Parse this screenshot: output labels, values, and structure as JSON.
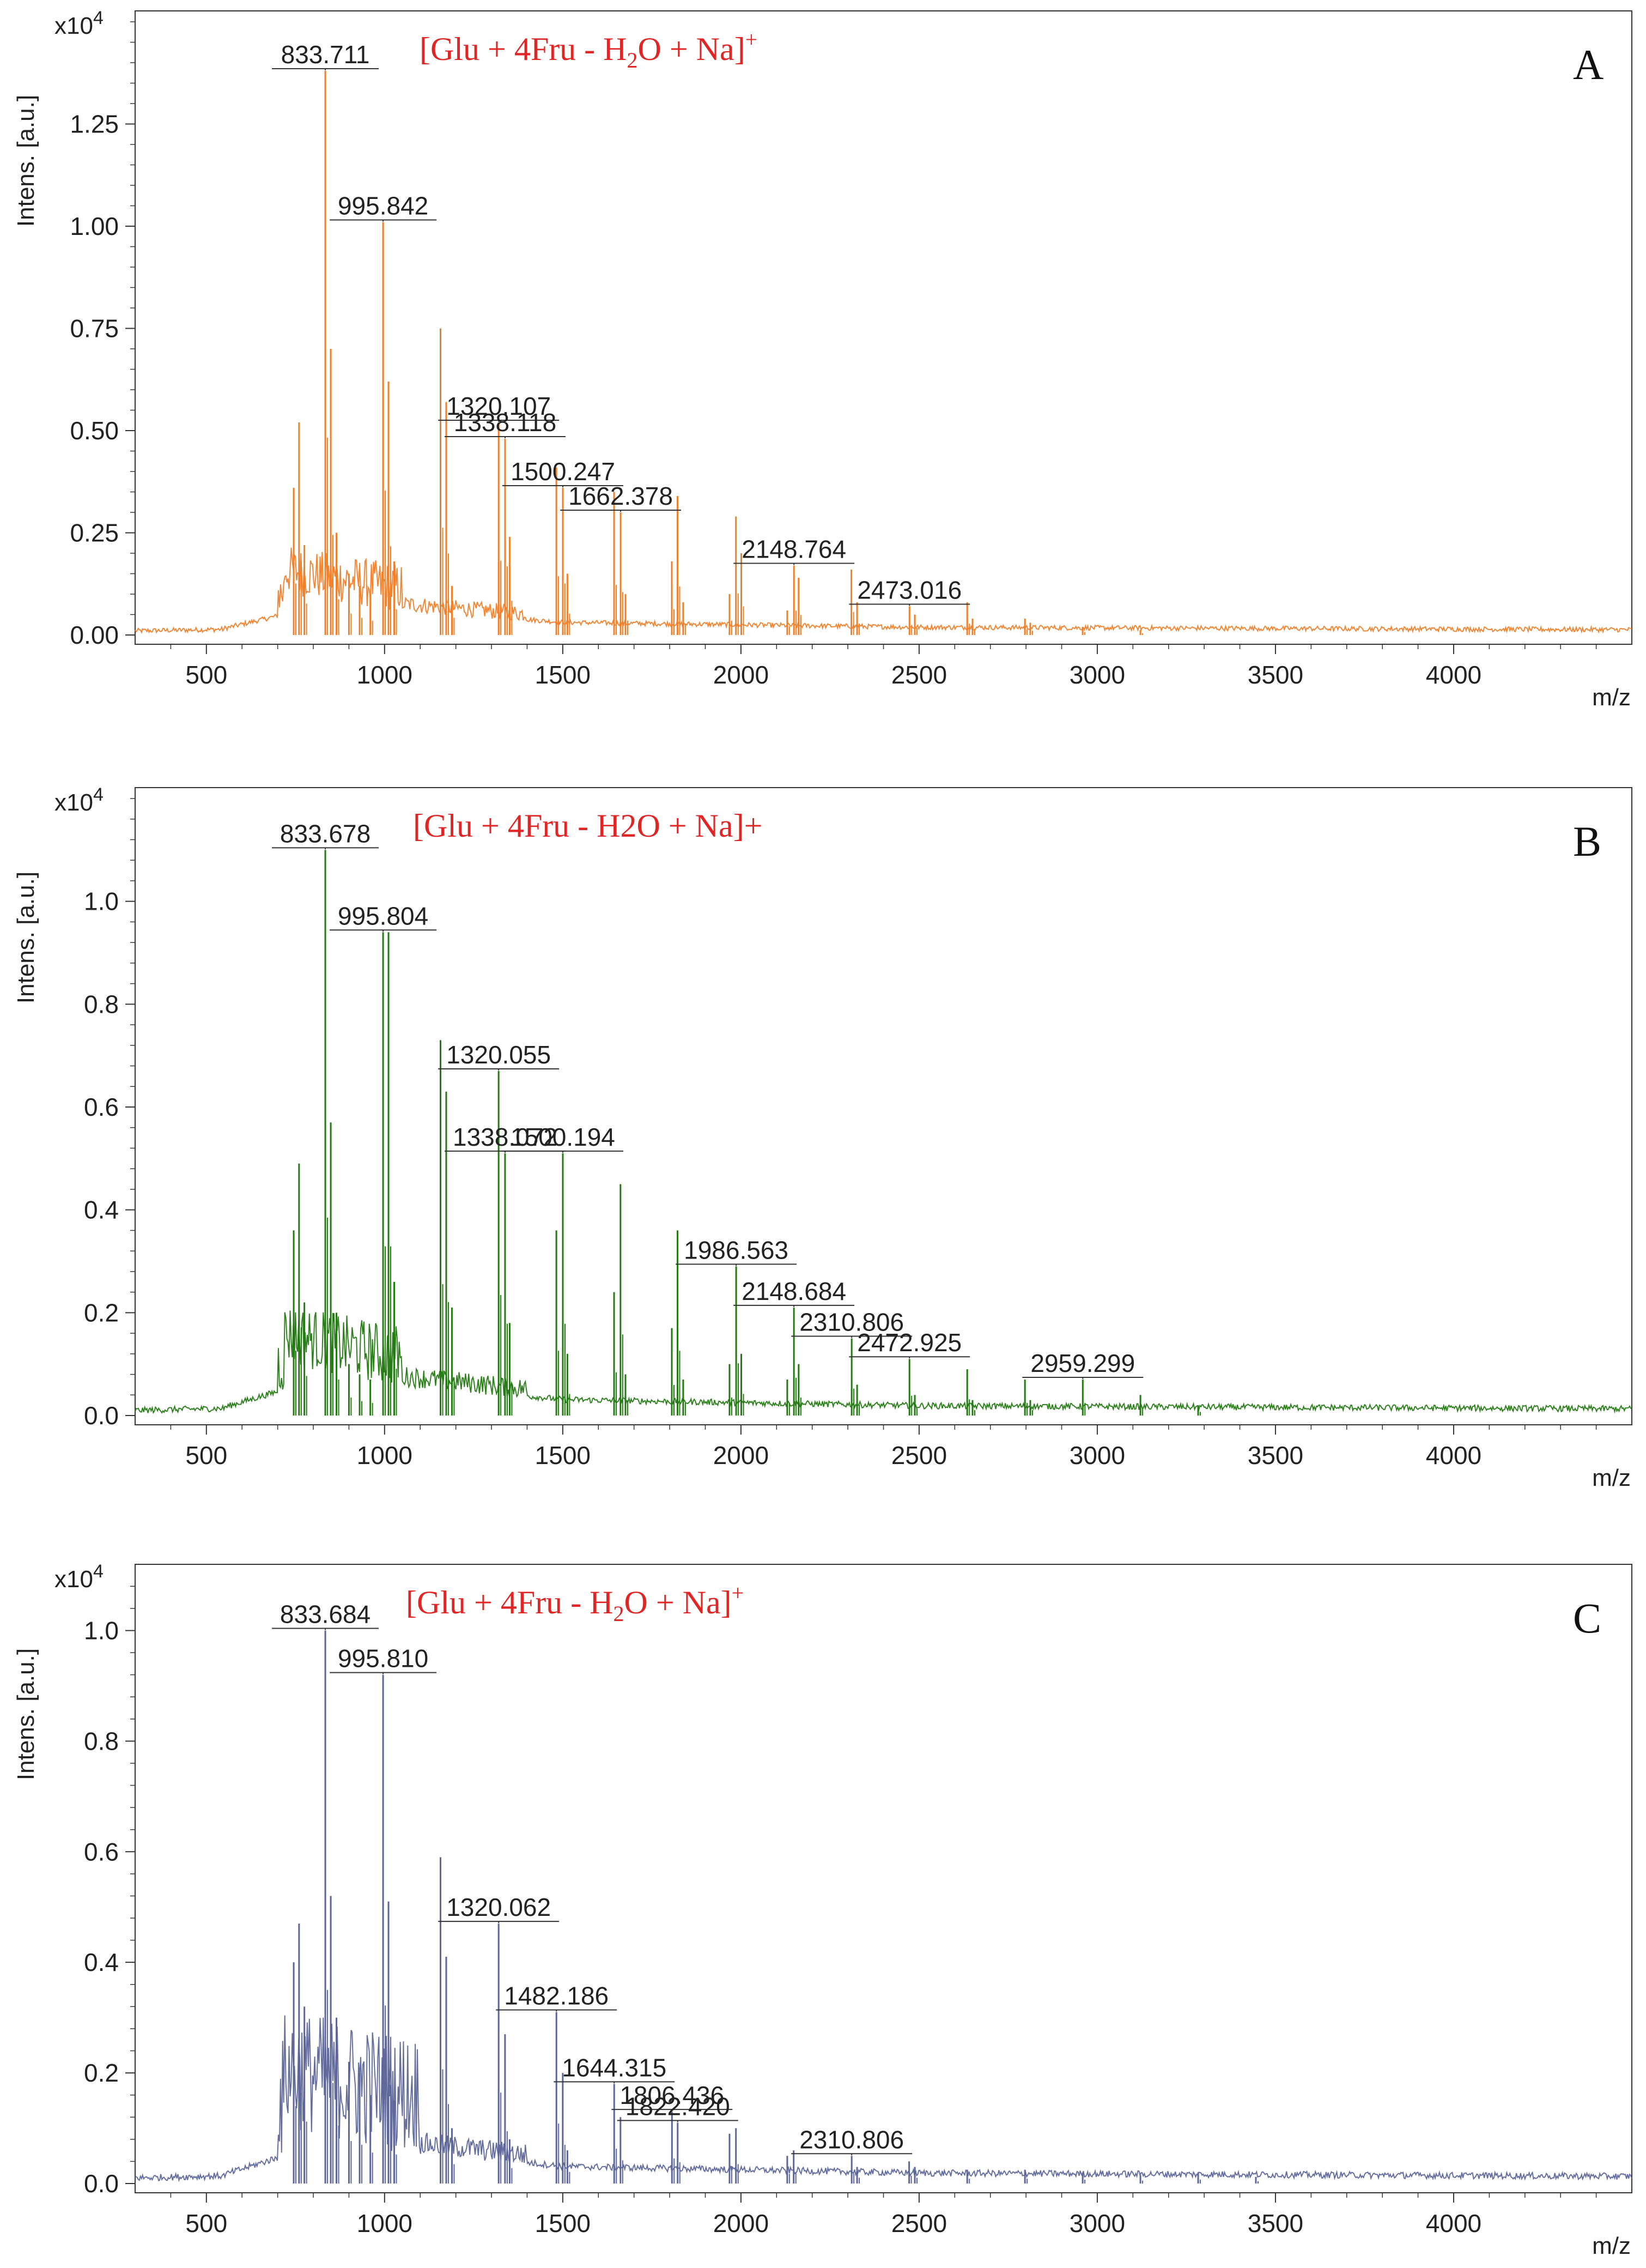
{
  "shared": {
    "xlabel": "m/z",
    "ylabel": "Intens. [a.u.]",
    "multiplier_base": "x10",
    "multiplier_exp": "4",
    "xlim": [
      300,
      4500
    ],
    "x_ticks": [
      500,
      1000,
      1500,
      2000,
      2500,
      3000,
      3500,
      4000
    ]
  },
  "chart_data": [
    {
      "type": "line",
      "panel_label": "A",
      "color": "#F07F2A",
      "annotation": {
        "main": "[Glu + 4Fru - H",
        "sub": "2",
        "main2": "O + Na]",
        "sup": "+",
        "plain": ""
      },
      "ylim": [
        0,
        1.5
      ],
      "y_ticks": [
        "0.00",
        "0.25",
        "0.50",
        "0.75",
        "1.00",
        "1.25"
      ],
      "y_tick_values": [
        0,
        0.25,
        0.5,
        0.75,
        1.0,
        1.25
      ],
      "peaks": [
        {
          "mz": 745,
          "y": 0.36
        },
        {
          "mz": 760,
          "y": 0.52
        },
        {
          "mz": 775,
          "y": 0.22
        },
        {
          "mz": 833.711,
          "y": 1.38
        },
        {
          "mz": 849,
          "y": 0.7
        },
        {
          "mz": 865,
          "y": 0.25
        },
        {
          "mz": 900,
          "y": 0.15
        },
        {
          "mz": 930,
          "y": 0.12
        },
        {
          "mz": 960,
          "y": 0.1
        },
        {
          "mz": 995.842,
          "y": 1.01
        },
        {
          "mz": 1011,
          "y": 0.62
        },
        {
          "mz": 1027,
          "y": 0.18
        },
        {
          "mz": 1157,
          "y": 0.75
        },
        {
          "mz": 1173,
          "y": 0.57
        },
        {
          "mz": 1189,
          "y": 0.12
        },
        {
          "mz": 1320.107,
          "y": 0.52
        },
        {
          "mz": 1338.118,
          "y": 0.48
        },
        {
          "mz": 1351,
          "y": 0.24
        },
        {
          "mz": 1482,
          "y": 0.41
        },
        {
          "mz": 1500.247,
          "y": 0.36
        },
        {
          "mz": 1513,
          "y": 0.15
        },
        {
          "mz": 1644,
          "y": 0.35
        },
        {
          "mz": 1662.378,
          "y": 0.3
        },
        {
          "mz": 1676,
          "y": 0.1
        },
        {
          "mz": 1806,
          "y": 0.18
        },
        {
          "mz": 1822,
          "y": 0.34
        },
        {
          "mz": 1838,
          "y": 0.08
        },
        {
          "mz": 1968,
          "y": 0.1
        },
        {
          "mz": 1986,
          "y": 0.29
        },
        {
          "mz": 2001,
          "y": 0.2
        },
        {
          "mz": 2130,
          "y": 0.06
        },
        {
          "mz": 2148.764,
          "y": 0.17
        },
        {
          "mz": 2162,
          "y": 0.14
        },
        {
          "mz": 2310,
          "y": 0.16
        },
        {
          "mz": 2326,
          "y": 0.08
        },
        {
          "mz": 2473.016,
          "y": 0.07
        },
        {
          "mz": 2488,
          "y": 0.05
        },
        {
          "mz": 2635,
          "y": 0.08
        },
        {
          "mz": 2650,
          "y": 0.04
        },
        {
          "mz": 2797,
          "y": 0.04
        },
        {
          "mz": 2812,
          "y": 0.03
        },
        {
          "mz": 2959,
          "y": 0.02
        },
        {
          "mz": 3121,
          "y": 0.012
        }
      ],
      "labels": [
        {
          "text": "833.711",
          "mz": 833.711,
          "y": 1.38
        },
        {
          "text": "995.842",
          "mz": 995.842,
          "y": 1.01
        },
        {
          "text": "1320.107",
          "mz": 1320.107,
          "y": 0.52
        },
        {
          "text": "1338.118",
          "mz": 1338.118,
          "y": 0.48
        },
        {
          "text": "1500.247",
          "mz": 1500.247,
          "y": 0.36
        },
        {
          "text": "1662.378",
          "mz": 1662.378,
          "y": 0.3
        },
        {
          "text": "2148.764",
          "mz": 2148.764,
          "y": 0.17
        },
        {
          "text": "2473.016",
          "mz": 2473.016,
          "y": 0.07
        }
      ]
    },
    {
      "type": "line",
      "panel_label": "B",
      "color": "#237A12",
      "annotation": {
        "main": "",
        "sub": "",
        "main2": "",
        "sup": "",
        "plain": "[Glu + 4Fru - H2O + Na]+"
      },
      "ylim": [
        0,
        1.2
      ],
      "y_ticks": [
        "0.0",
        "0.2",
        "0.4",
        "0.6",
        "0.8",
        "1.0"
      ],
      "y_tick_values": [
        0,
        0.2,
        0.4,
        0.6,
        0.8,
        1.0
      ],
      "peaks": [
        {
          "mz": 745,
          "y": 0.36
        },
        {
          "mz": 760,
          "y": 0.49
        },
        {
          "mz": 775,
          "y": 0.22
        },
        {
          "mz": 833.678,
          "y": 1.1
        },
        {
          "mz": 849,
          "y": 0.57
        },
        {
          "mz": 865,
          "y": 0.2
        },
        {
          "mz": 900,
          "y": 0.1
        },
        {
          "mz": 930,
          "y": 0.08
        },
        {
          "mz": 960,
          "y": 0.07
        },
        {
          "mz": 995.804,
          "y": 0.94
        },
        {
          "mz": 1011,
          "y": 0.94
        },
        {
          "mz": 1027,
          "y": 0.26
        },
        {
          "mz": 1157,
          "y": 0.73
        },
        {
          "mz": 1173,
          "y": 0.63
        },
        {
          "mz": 1189,
          "y": 0.21
        },
        {
          "mz": 1320.055,
          "y": 0.67
        },
        {
          "mz": 1338.072,
          "y": 0.51
        },
        {
          "mz": 1351,
          "y": 0.18
        },
        {
          "mz": 1482,
          "y": 0.36
        },
        {
          "mz": 1500.194,
          "y": 0.51
        },
        {
          "mz": 1513,
          "y": 0.12
        },
        {
          "mz": 1644,
          "y": 0.24
        },
        {
          "mz": 1662,
          "y": 0.45
        },
        {
          "mz": 1676,
          "y": 0.08
        },
        {
          "mz": 1806,
          "y": 0.17
        },
        {
          "mz": 1822,
          "y": 0.36
        },
        {
          "mz": 1838,
          "y": 0.07
        },
        {
          "mz": 1968,
          "y": 0.1
        },
        {
          "mz": 1986.563,
          "y": 0.29
        },
        {
          "mz": 2001,
          "y": 0.12
        },
        {
          "mz": 2130,
          "y": 0.07
        },
        {
          "mz": 2148.684,
          "y": 0.21
        },
        {
          "mz": 2162,
          "y": 0.1
        },
        {
          "mz": 2310.806,
          "y": 0.15
        },
        {
          "mz": 2326,
          "y": 0.06
        },
        {
          "mz": 2472.925,
          "y": 0.11
        },
        {
          "mz": 2488,
          "y": 0.04
        },
        {
          "mz": 2635,
          "y": 0.09
        },
        {
          "mz": 2650,
          "y": 0.03
        },
        {
          "mz": 2797,
          "y": 0.07
        },
        {
          "mz": 2812,
          "y": 0.03
        },
        {
          "mz": 2959.299,
          "y": 0.07
        },
        {
          "mz": 3121,
          "y": 0.04
        },
        {
          "mz": 3283,
          "y": 0.02
        }
      ],
      "labels": [
        {
          "text": "833.678",
          "mz": 833.678,
          "y": 1.1
        },
        {
          "text": "995.804",
          "mz": 995.804,
          "y": 0.94
        },
        {
          "text": "1320.055",
          "mz": 1320.055,
          "y": 0.67
        },
        {
          "text": "1338.072",
          "mz": 1338.072,
          "y": 0.51
        },
        {
          "text": "1500.194",
          "mz": 1500.194,
          "y": 0.51
        },
        {
          "text": "1986.563",
          "mz": 1986.563,
          "y": 0.29
        },
        {
          "text": "2148.684",
          "mz": 2148.684,
          "y": 0.21
        },
        {
          "text": "2310.806",
          "mz": 2310.806,
          "y": 0.15
        },
        {
          "text": "2472.925",
          "mz": 2472.925,
          "y": 0.11
        },
        {
          "text": "2959.299",
          "mz": 2959.299,
          "y": 0.07
        }
      ]
    },
    {
      "type": "line",
      "panel_label": "C",
      "color": "#5D6699",
      "annotation": {
        "main": "[Glu + 4Fru - H",
        "sub": "2",
        "main2": "O + Na]",
        "sup": "+",
        "plain": ""
      },
      "ylim": [
        0,
        1.1
      ],
      "y_ticks": [
        "0.0",
        "0.2",
        "0.4",
        "0.6",
        "0.8",
        "1.0"
      ],
      "y_tick_values": [
        0,
        0.2,
        0.4,
        0.6,
        0.8,
        1.0
      ],
      "peaks": [
        {
          "mz": 745,
          "y": 0.4
        },
        {
          "mz": 760,
          "y": 0.47
        },
        {
          "mz": 775,
          "y": 0.32
        },
        {
          "mz": 833.684,
          "y": 1.0
        },
        {
          "mz": 849,
          "y": 0.52
        },
        {
          "mz": 865,
          "y": 0.3
        },
        {
          "mz": 900,
          "y": 0.22
        },
        {
          "mz": 930,
          "y": 0.2
        },
        {
          "mz": 960,
          "y": 0.16
        },
        {
          "mz": 995.81,
          "y": 0.92
        },
        {
          "mz": 1011,
          "y": 0.51
        },
        {
          "mz": 1027,
          "y": 0.15
        },
        {
          "mz": 1157,
          "y": 0.59
        },
        {
          "mz": 1173,
          "y": 0.41
        },
        {
          "mz": 1189,
          "y": 0.1
        },
        {
          "mz": 1320.062,
          "y": 0.47
        },
        {
          "mz": 1338,
          "y": 0.27
        },
        {
          "mz": 1351,
          "y": 0.08
        },
        {
          "mz": 1482.186,
          "y": 0.31
        },
        {
          "mz": 1500,
          "y": 0.2
        },
        {
          "mz": 1513,
          "y": 0.06
        },
        {
          "mz": 1644.315,
          "y": 0.18
        },
        {
          "mz": 1662,
          "y": 0.12
        },
        {
          "mz": 1806.436,
          "y": 0.13
        },
        {
          "mz": 1822.42,
          "y": 0.11
        },
        {
          "mz": 1968,
          "y": 0.09
        },
        {
          "mz": 1986,
          "y": 0.1
        },
        {
          "mz": 2130,
          "y": 0.05
        },
        {
          "mz": 2148,
          "y": 0.06
        },
        {
          "mz": 2310.806,
          "y": 0.05
        },
        {
          "mz": 2326,
          "y": 0.03
        },
        {
          "mz": 2472,
          "y": 0.04
        },
        {
          "mz": 2488,
          "y": 0.03
        },
        {
          "mz": 2635,
          "y": 0.025
        },
        {
          "mz": 2797,
          "y": 0.025
        },
        {
          "mz": 2959,
          "y": 0.02
        },
        {
          "mz": 3121,
          "y": 0.015
        },
        {
          "mz": 3283,
          "y": 0.02
        },
        {
          "mz": 3445,
          "y": 0.012
        }
      ],
      "labels": [
        {
          "text": "833.684",
          "mz": 833.684,
          "y": 1.0
        },
        {
          "text": "995.810",
          "mz": 995.81,
          "y": 0.92
        },
        {
          "text": "1320.062",
          "mz": 1320.062,
          "y": 0.47
        },
        {
          "text": "1482.186",
          "mz": 1482.186,
          "y": 0.31
        },
        {
          "text": "1644.315",
          "mz": 1644.315,
          "y": 0.18
        },
        {
          "text": "1806.436",
          "mz": 1806.436,
          "y": 0.13
        },
        {
          "text": "1822.420",
          "mz": 1822.42,
          "y": 0.11
        },
        {
          "text": "2310.806",
          "mz": 2310.806,
          "y": 0.05
        }
      ]
    }
  ]
}
